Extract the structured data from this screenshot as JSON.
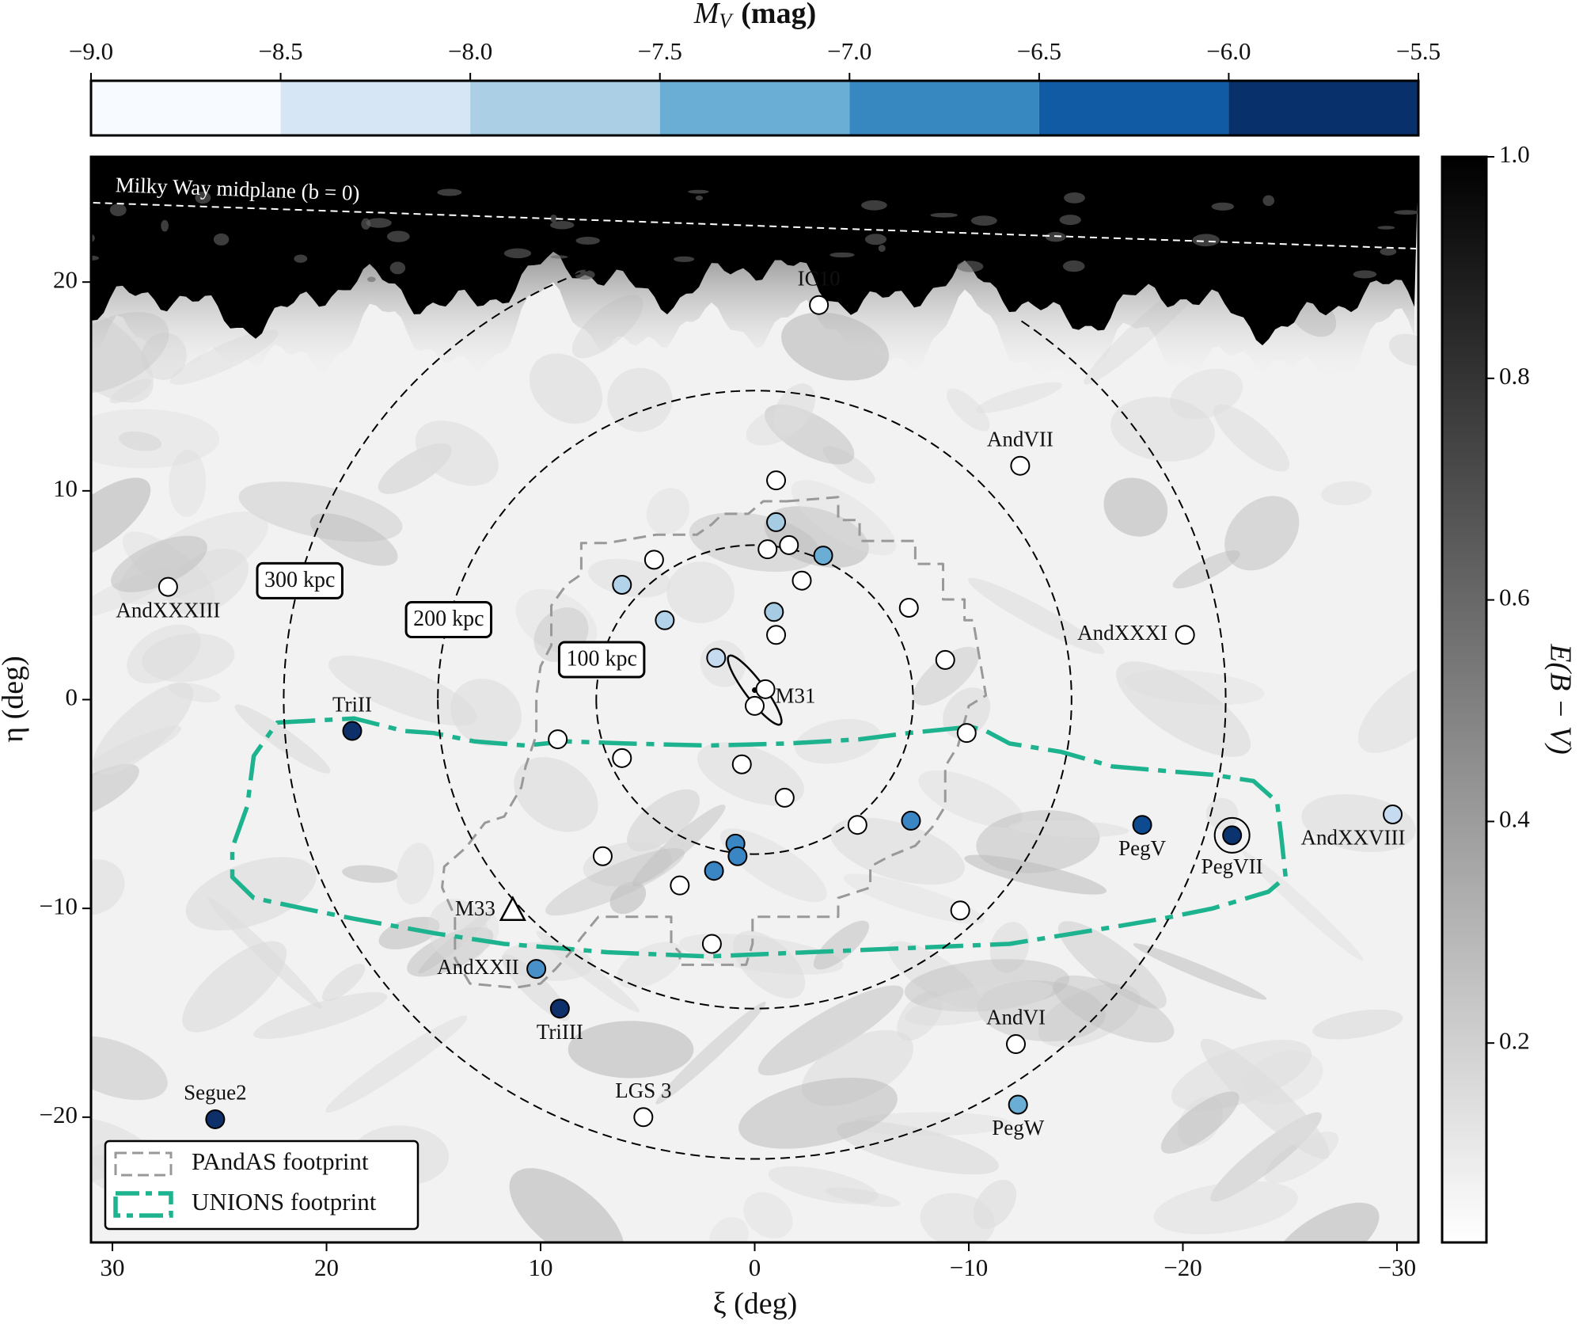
{
  "chart_data": {
    "type": "scatter",
    "xlabel": "ξ (deg)",
    "ylabel": "η (deg)",
    "xlim": [
      31,
      -31
    ],
    "ylim": [
      -26,
      26
    ],
    "xticks": [
      30,
      20,
      10,
      0,
      {
        "value": -10,
        "label": "−10"
      },
      {
        "value": -20,
        "label": "−20"
      },
      {
        "value": -30,
        "label": "−30"
      }
    ],
    "yticks": [
      {
        "value": -20,
        "label": "−20"
      },
      {
        "value": -10,
        "label": "−10"
      },
      0,
      10,
      20
    ],
    "colorbar": {
      "symbol": "M",
      "subscript": "V",
      "unit": "(mag)",
      "clim": [
        -9,
        -5.5
      ],
      "ticks": [
        {
          "value": -9,
          "label": "−9.0"
        },
        {
          "value": -8.5,
          "label": "−8.5"
        },
        {
          "value": -8,
          "label": "−8.0"
        },
        {
          "value": -7.5,
          "label": "−7.5"
        },
        {
          "value": -7,
          "label": "−7.0"
        },
        {
          "value": -6.5,
          "label": "−6.5"
        },
        {
          "value": -6,
          "label": "−6.0"
        },
        {
          "value": -5.5,
          "label": "−5.5"
        }
      ],
      "colors": [
        "#f7fbff",
        "#d6e6f4",
        "#abd0e6",
        "#6aaed6",
        "#3787c0",
        "#105ba4",
        "#08306b"
      ]
    },
    "dust_colorbar": {
      "label": "E(B − V)",
      "clim": [
        0.02,
        1.0
      ],
      "ticks": [
        0.2,
        0.4,
        0.6,
        0.8,
        {
          "value": 1,
          "label": "1.0"
        }
      ]
    },
    "midplane": {
      "label": "Milky Way midplane (b = 0)",
      "x": [
        30.9,
        -30.9
      ],
      "y": [
        23.8,
        21.6
      ]
    },
    "rings": [
      {
        "label": "100 kpc",
        "radius": 7.4
      },
      {
        "label": "200 kpc",
        "radius": 14.8
      },
      {
        "label": "300 kpc",
        "radius": 22.0
      }
    ],
    "footprints": [
      {
        "name": "PAndAS footprint",
        "color": "#999999",
        "x": [
          -1.5,
          -3.9,
          -3.9,
          -4.9,
          -4.9,
          -7.5,
          -7.5,
          -8.8,
          -8.8,
          -9.8,
          -9.8,
          -10.2,
          -10.8,
          -10.0,
          -9.5,
          -8.9,
          -8.9,
          -8.3,
          -7.5,
          -6.3,
          -5.4,
          -5.4,
          -3.9,
          -3.9,
          0.1,
          0.1,
          0.4,
          3.5,
          3.5,
          3.9,
          3.9,
          7.3,
          8.1,
          8.6,
          9.3,
          10.0,
          11.2,
          13.3,
          14.0,
          14.0,
          14.6,
          14.5,
          13.5,
          12.6,
          11.7,
          10.9,
          10.7,
          10.2,
          10.2,
          10.0,
          9.5,
          9.5,
          8.8,
          8.1,
          8.1,
          6.9,
          4.6,
          2.7,
          2.0,
          1.5,
          0.3,
          -0.4
        ],
        "y": [
          9.5,
          9.7,
          8.6,
          8.6,
          7.6,
          7.6,
          6.5,
          6.5,
          4.8,
          4.8,
          3.8,
          3.8,
          0.2,
          -0.3,
          -2.2,
          -3.2,
          -5.1,
          -6.1,
          -7.0,
          -7.5,
          -8.0,
          -9.0,
          -9.5,
          -10.4,
          -10.4,
          -11.7,
          -12.7,
          -12.7,
          -12.1,
          -11.7,
          -10.4,
          -10.4,
          -11.4,
          -12.1,
          -12.9,
          -13.6,
          -13.8,
          -13.6,
          -12.4,
          -10.4,
          -9.0,
          -8.0,
          -7.1,
          -5.9,
          -5.6,
          -4.2,
          -3.2,
          -1.7,
          0.2,
          1.6,
          2.6,
          4.5,
          5.5,
          6.0,
          7.5,
          7.5,
          7.9,
          7.9,
          8.4,
          8.9,
          8.9,
          9.5
        ]
      },
      {
        "name": "UNIONS footprint",
        "color": "#1db38e",
        "x": [
          22.3,
          18.7,
          16.4,
          15.0,
          13.1,
          10.7,
          8.8,
          6.0,
          2.2,
          -1.6,
          -4.9,
          -7.2,
          -10.1,
          -10.8,
          -11.9,
          -14.3,
          -16.7,
          -19.0,
          -21.4,
          -23.3,
          -24.4,
          -24.6,
          -24.8,
          -24.0,
          -21.4,
          -19.0,
          -16.7,
          -14.3,
          -11.9,
          -7.2,
          -2.5,
          2.2,
          6.9,
          9.2,
          11.7,
          14.9,
          18.7,
          21.1,
          23.4,
          24.4,
          24.4,
          23.7,
          23.4
        ],
        "y": [
          -1.1,
          -0.9,
          -1.5,
          -1.6,
          -2.0,
          -2.2,
          -2.0,
          -2.1,
          -2.2,
          -2.1,
          -1.9,
          -1.6,
          -1.3,
          -1.5,
          -2.1,
          -2.5,
          -3.2,
          -3.4,
          -3.6,
          -3.9,
          -4.9,
          -6.6,
          -8.5,
          -9.2,
          -10.0,
          -10.5,
          -10.9,
          -11.3,
          -11.7,
          -11.9,
          -12.1,
          -12.3,
          -12.1,
          -11.9,
          -11.7,
          -11.2,
          -10.5,
          -10.0,
          -9.5,
          -8.5,
          -7.1,
          -5.1,
          -2.7
        ]
      }
    ],
    "galaxies": [
      {
        "name": "IC10",
        "x": -3.0,
        "y": 18.9,
        "color": "#ffffff"
      },
      {
        "name": "AndVII",
        "x": -12.4,
        "y": 11.2,
        "color": "#ffffff"
      },
      {
        "name": "AndXXXIII",
        "x": 27.4,
        "y": 5.4,
        "color": "#ffffff"
      },
      {
        "name": "AndXXXI",
        "x": -20.1,
        "y": 3.1,
        "color": "#ffffff"
      },
      {
        "name": "TriII",
        "x": 18.8,
        "y": -1.5,
        "color": "#0d2f6a"
      },
      {
        "name": "AndXXVIII",
        "x": -29.8,
        "y": -5.5,
        "color": "#c6dbef"
      },
      {
        "name": "PegV",
        "x": -18.1,
        "y": -6.0,
        "color": "#0d4a90"
      },
      {
        "name": "PegVII",
        "x": -22.3,
        "y": -6.5,
        "color": "#0b3370"
      },
      {
        "name": "M33",
        "x": 11.3,
        "y": -10.1,
        "color": "#ffffff",
        "marker": "triangle"
      },
      {
        "name": "AndXXII",
        "x": 10.2,
        "y": -12.9,
        "color": "#4a90c8"
      },
      {
        "name": "TriIII",
        "x": 9.1,
        "y": -14.8,
        "color": "#0d2f6a"
      },
      {
        "name": "Segue2",
        "x": 25.2,
        "y": -20.1,
        "color": "#0d2f6a"
      },
      {
        "name": "LGS 3",
        "x": 5.2,
        "y": -20.0,
        "color": "#ffffff"
      },
      {
        "name": "AndVI",
        "x": -12.2,
        "y": -16.5,
        "color": "#ffffff"
      },
      {
        "name": "PegW",
        "x": -12.3,
        "y": -19.4,
        "color": "#6aaed6"
      },
      {
        "name": "M31",
        "x": 0.0,
        "y": 0.0,
        "color": "#ffffff",
        "marker": "ellipse"
      },
      {
        "x": -1.0,
        "y": 10.5,
        "color": "#ffffff"
      },
      {
        "x": -1.0,
        "y": 8.5,
        "color": "#a6cce4"
      },
      {
        "x": -0.6,
        "y": 7.2,
        "color": "#ffffff"
      },
      {
        "x": -1.6,
        "y": 7.4,
        "color": "#ffffff"
      },
      {
        "x": -3.2,
        "y": 6.9,
        "color": "#6aaed6"
      },
      {
        "x": 4.7,
        "y": 6.7,
        "color": "#ffffff"
      },
      {
        "x": 6.2,
        "y": 5.5,
        "color": "#b3d3ea"
      },
      {
        "x": -2.2,
        "y": 5.7,
        "color": "#ffffff"
      },
      {
        "x": 4.2,
        "y": 3.8,
        "color": "#b3d3ea"
      },
      {
        "x": -0.9,
        "y": 4.2,
        "color": "#a6cce4"
      },
      {
        "x": -1.0,
        "y": 3.1,
        "color": "#ffffff"
      },
      {
        "x": -7.2,
        "y": 4.4,
        "color": "#ffffff"
      },
      {
        "x": -8.9,
        "y": 1.9,
        "color": "#ffffff"
      },
      {
        "x": 1.8,
        "y": 2.0,
        "color": "#c6dbef"
      },
      {
        "x": -0.5,
        "y": 0.5,
        "color": "#ffffff"
      },
      {
        "x": 0.0,
        "y": -0.3,
        "color": "#ffffff"
      },
      {
        "x": -9.9,
        "y": -1.6,
        "color": "#ffffff"
      },
      {
        "x": 9.2,
        "y": -1.9,
        "color": "#ffffff"
      },
      {
        "x": 6.2,
        "y": -2.8,
        "color": "#ffffff"
      },
      {
        "x": 0.6,
        "y": -3.1,
        "color": "#ffffff"
      },
      {
        "x": -1.4,
        "y": -4.7,
        "color": "#ffffff"
      },
      {
        "x": -4.8,
        "y": -6.0,
        "color": "#ffffff"
      },
      {
        "x": -7.3,
        "y": -5.8,
        "color": "#3a85c3"
      },
      {
        "x": 0.9,
        "y": -6.9,
        "color": "#3a85c3"
      },
      {
        "x": 0.8,
        "y": -7.5,
        "color": "#3a85c3"
      },
      {
        "x": 1.9,
        "y": -8.2,
        "color": "#3a85c3"
      },
      {
        "x": 7.1,
        "y": -7.5,
        "color": "#ffffff"
      },
      {
        "x": 3.5,
        "y": -8.9,
        "color": "#ffffff"
      },
      {
        "x": -9.6,
        "y": -10.1,
        "color": "#ffffff"
      },
      {
        "x": 2.0,
        "y": -11.7,
        "color": "#ffffff"
      }
    ]
  }
}
